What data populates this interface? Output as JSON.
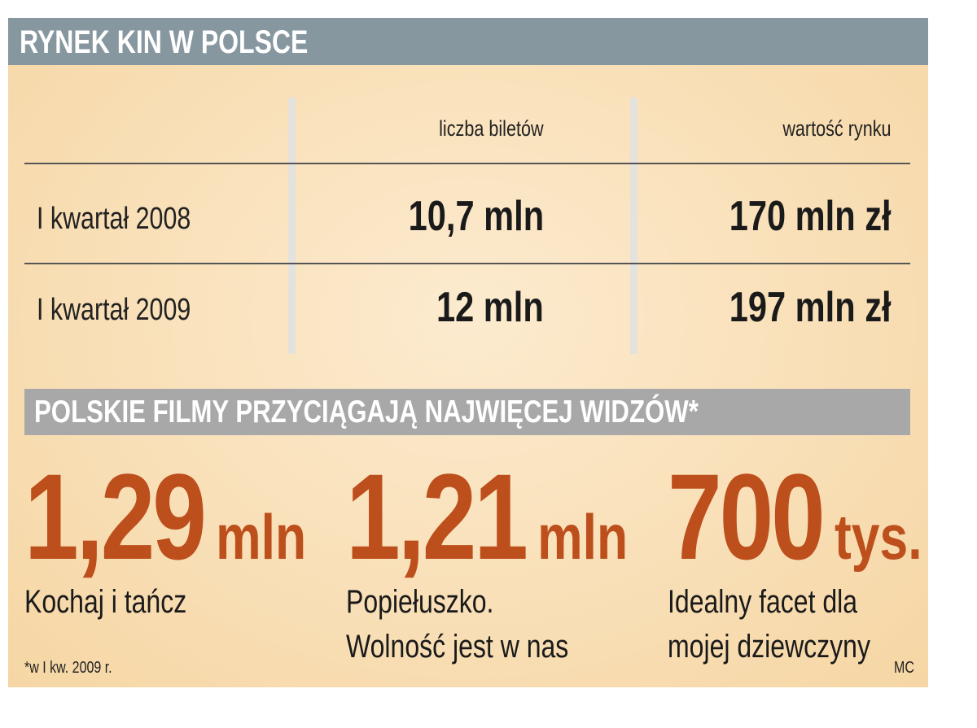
{
  "header": {
    "title": "RYNEK KIN W POLSCE"
  },
  "table": {
    "columns": [
      "liczba biletów",
      "wartość rynku"
    ],
    "rows": [
      [
        "I kwartał 2008",
        "10,7 mln",
        "170 mln zł"
      ],
      [
        "I kwartał 2009",
        "12 mln",
        "197 mln zł"
      ]
    ]
  },
  "section": {
    "title": "POLSKIE FILMY PRZYCIĄGAJĄ NAJWIĘCEJ WIDZÓW*"
  },
  "films": [
    {
      "number": "1,29",
      "unit": "mln",
      "title_lines": [
        "Kochaj i tańcz"
      ]
    },
    {
      "number": "1,21",
      "unit": "mln",
      "title_lines": [
        "Popiełuszko.",
        "Wolność jest w nas"
      ]
    },
    {
      "number": "700",
      "unit": "tys.",
      "title_lines": [
        "Idealny facet dla",
        "mojej dziewczyny"
      ]
    }
  ],
  "footnote": "*w I kw. 2009 r.",
  "credit": "MC"
}
